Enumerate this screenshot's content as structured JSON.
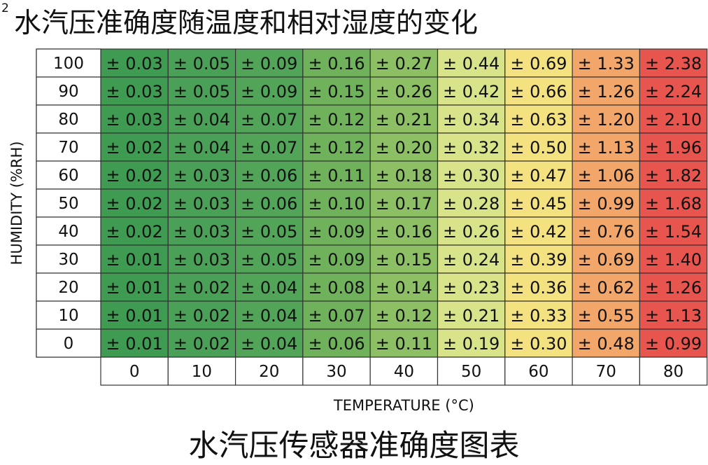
{
  "header": {
    "superscript": "2",
    "title": "水汽压准确度随温度和相对湿度的变化"
  },
  "footer": {
    "caption": "水汽压传感器准确度图表"
  },
  "chart_data": {
    "type": "heatmap",
    "title": "水汽压准确度随温度和相对湿度的变化",
    "xlabel": "TEMPERATURE (°C)",
    "ylabel": "HUMIDITY (%RH)",
    "x": [
      0,
      10,
      20,
      30,
      40,
      50,
      60,
      70,
      80
    ],
    "y": [
      100,
      90,
      80,
      70,
      60,
      50,
      40,
      30,
      20,
      10,
      0
    ],
    "value_prefix": "± ",
    "values": [
      [
        0.03,
        0.05,
        0.09,
        0.16,
        0.27,
        0.44,
        0.69,
        1.33,
        2.38
      ],
      [
        0.03,
        0.05,
        0.09,
        0.15,
        0.26,
        0.42,
        0.66,
        1.26,
        2.24
      ],
      [
        0.03,
        0.04,
        0.07,
        0.12,
        0.21,
        0.34,
        0.63,
        1.2,
        2.1
      ],
      [
        0.02,
        0.04,
        0.07,
        0.12,
        0.2,
        0.32,
        0.5,
        1.13,
        1.96
      ],
      [
        0.02,
        0.03,
        0.06,
        0.11,
        0.18,
        0.3,
        0.47,
        1.06,
        1.82
      ],
      [
        0.02,
        0.03,
        0.06,
        0.1,
        0.17,
        0.28,
        0.45,
        0.99,
        1.68
      ],
      [
        0.02,
        0.03,
        0.05,
        0.09,
        0.16,
        0.26,
        0.42,
        0.76,
        1.54
      ],
      [
        0.01,
        0.03,
        0.05,
        0.09,
        0.15,
        0.24,
        0.39,
        0.69,
        1.4
      ],
      [
        0.01,
        0.02,
        0.04,
        0.08,
        0.14,
        0.23,
        0.36,
        0.62,
        1.26
      ],
      [
        0.01,
        0.02,
        0.04,
        0.07,
        0.12,
        0.21,
        0.33,
        0.55,
        1.13
      ],
      [
        0.01,
        0.02,
        0.04,
        0.06,
        0.11,
        0.19,
        0.3,
        0.48,
        0.99
      ]
    ],
    "column_colors": [
      "#3f9a52",
      "#4aa056",
      "#52a458",
      "#70b25c",
      "#8dc065",
      "#d9e38a",
      "#f3e27f",
      "#f2a66a",
      "#e8554f"
    ],
    "grid": true,
    "legend": "none"
  }
}
